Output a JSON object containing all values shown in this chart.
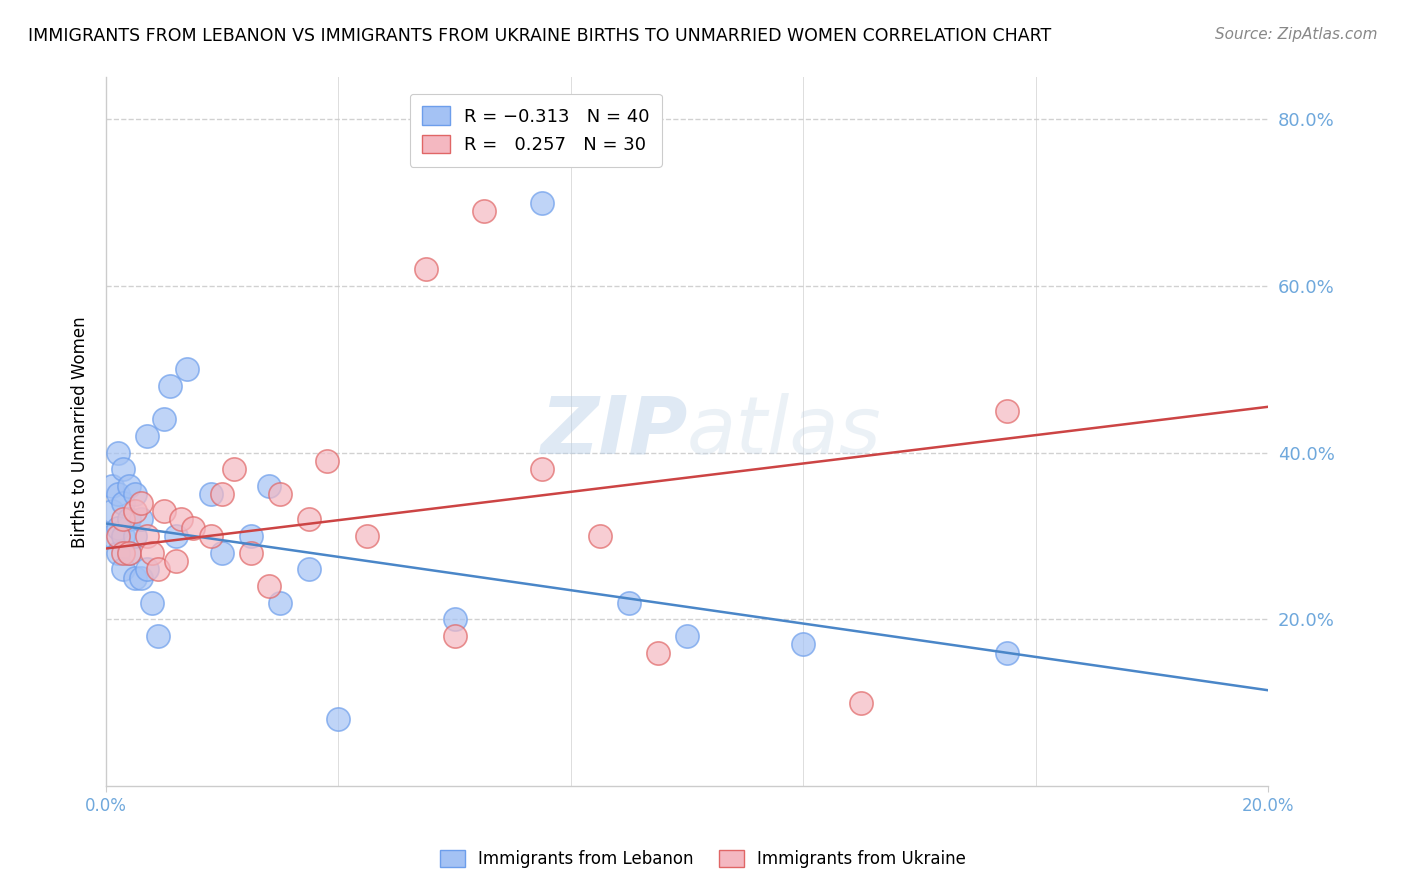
{
  "title": "IMMIGRANTS FROM LEBANON VS IMMIGRANTS FROM UKRAINE BIRTHS TO UNMARRIED WOMEN CORRELATION CHART",
  "source": "Source: ZipAtlas.com",
  "ylabel": "Births to Unmarried Women",
  "xlim": [
    0.0,
    0.2
  ],
  "ylim": [
    0.0,
    0.85
  ],
  "yticks": [
    0.2,
    0.4,
    0.6,
    0.8
  ],
  "ytick_labels": [
    "20.0%",
    "40.0%",
    "60.0%",
    "80.0%"
  ],
  "xticks_labeled": [
    0.0,
    0.2
  ],
  "xtick_labels": [
    "0.0%",
    "20.0%"
  ],
  "xticks_grid": [
    0.0,
    0.04,
    0.08,
    0.12,
    0.16,
    0.2
  ],
  "lebanon_R": -0.313,
  "lebanon_N": 40,
  "ukraine_R": 0.257,
  "ukraine_N": 30,
  "lebanon_color": "#a4c2f4",
  "ukraine_color": "#f4b8c1",
  "lebanon_edge_color": "#6d9eeb",
  "ukraine_edge_color": "#e06666",
  "lebanon_line_color": "#4a86c8",
  "ukraine_line_color": "#cc4444",
  "tick_color": "#6fa8dc",
  "watermark_zip": "ZIP",
  "watermark_atlas": "atlas",
  "lebanon_x": [
    0.001,
    0.001,
    0.001,
    0.002,
    0.002,
    0.002,
    0.002,
    0.003,
    0.003,
    0.003,
    0.003,
    0.004,
    0.004,
    0.004,
    0.005,
    0.005,
    0.005,
    0.006,
    0.006,
    0.007,
    0.007,
    0.008,
    0.009,
    0.01,
    0.011,
    0.012,
    0.014,
    0.018,
    0.02,
    0.025,
    0.028,
    0.03,
    0.035,
    0.04,
    0.06,
    0.075,
    0.09,
    0.1,
    0.12,
    0.155
  ],
  "lebanon_y": [
    0.3,
    0.33,
    0.36,
    0.28,
    0.31,
    0.35,
    0.4,
    0.26,
    0.3,
    0.34,
    0.38,
    0.28,
    0.32,
    0.36,
    0.25,
    0.3,
    0.35,
    0.25,
    0.32,
    0.26,
    0.42,
    0.22,
    0.18,
    0.44,
    0.48,
    0.3,
    0.5,
    0.35,
    0.28,
    0.3,
    0.36,
    0.22,
    0.26,
    0.08,
    0.2,
    0.7,
    0.22,
    0.18,
    0.17,
    0.16
  ],
  "ukraine_x": [
    0.002,
    0.003,
    0.003,
    0.004,
    0.005,
    0.006,
    0.007,
    0.008,
    0.009,
    0.01,
    0.012,
    0.013,
    0.015,
    0.018,
    0.02,
    0.022,
    0.025,
    0.028,
    0.03,
    0.035,
    0.038,
    0.045,
    0.055,
    0.06,
    0.065,
    0.075,
    0.085,
    0.095,
    0.13,
    0.155
  ],
  "ukraine_y": [
    0.3,
    0.28,
    0.32,
    0.28,
    0.33,
    0.34,
    0.3,
    0.28,
    0.26,
    0.33,
    0.27,
    0.32,
    0.31,
    0.3,
    0.35,
    0.38,
    0.28,
    0.24,
    0.35,
    0.32,
    0.39,
    0.3,
    0.62,
    0.18,
    0.69,
    0.38,
    0.3,
    0.16,
    0.1,
    0.45
  ],
  "leb_trend_x": [
    0.0,
    0.2
  ],
  "leb_trend_y": [
    0.315,
    0.115
  ],
  "ukr_trend_x": [
    0.0,
    0.2
  ],
  "ukr_trend_y": [
    0.285,
    0.455
  ]
}
